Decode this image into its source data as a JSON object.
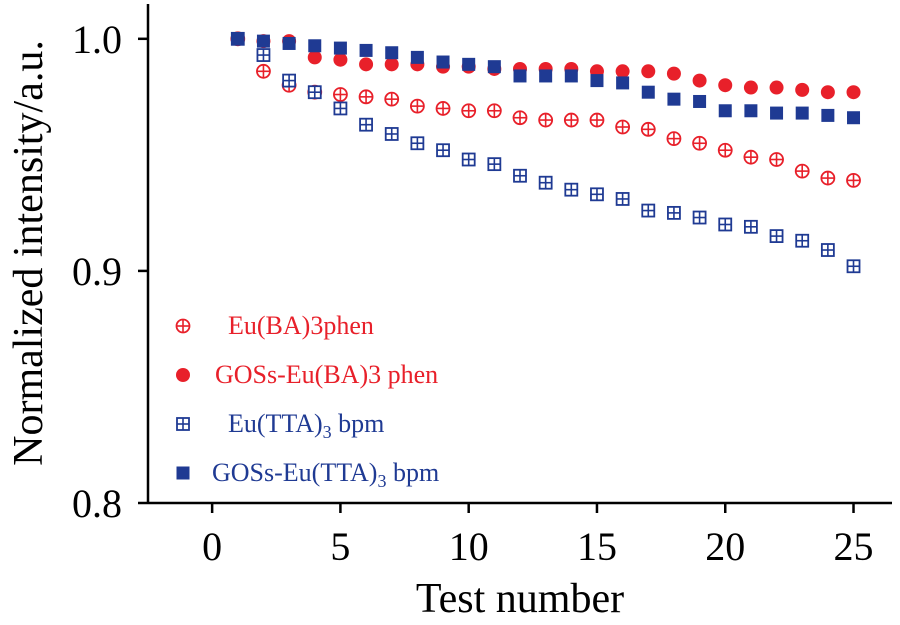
{
  "chart_data": {
    "type": "scatter",
    "xlabel": "Test number",
    "ylabel": "Normalized intensity/a.u.",
    "xlim": [
      -2.5,
      26.5
    ],
    "ylim": [
      0.8,
      1.015
    ],
    "xticks": [
      0,
      5,
      10,
      15,
      20,
      25
    ],
    "xtick_labels": [
      "0",
      "5",
      "10",
      "15",
      "20",
      "25"
    ],
    "yticks": [
      0.8,
      0.9,
      1.0
    ],
    "ytick_labels": [
      "0.8",
      "0.9",
      "1.0"
    ],
    "grid": false,
    "legend_position": "bottom-left",
    "x": [
      1,
      2,
      3,
      4,
      5,
      6,
      7,
      8,
      9,
      10,
      11,
      12,
      13,
      14,
      15,
      16,
      17,
      18,
      19,
      20,
      21,
      22,
      23,
      24,
      25
    ],
    "series": [
      {
        "name": "Eu(BA)3phen",
        "marker": "circle-cross-open",
        "color": "#e8202a",
        "values": [
          1.0,
          0.986,
          0.98,
          0.977,
          0.976,
          0.975,
          0.974,
          0.971,
          0.97,
          0.969,
          0.969,
          0.966,
          0.965,
          0.965,
          0.965,
          0.962,
          0.961,
          0.957,
          0.955,
          0.952,
          0.949,
          0.948,
          0.943,
          0.94,
          0.939
        ]
      },
      {
        "name": "GOSs-Eu(BA)3 phen",
        "marker": "circle-filled",
        "color": "#e8202a",
        "values": [
          1.0,
          0.999,
          0.999,
          0.992,
          0.991,
          0.989,
          0.989,
          0.989,
          0.988,
          0.988,
          0.987,
          0.987,
          0.987,
          0.987,
          0.986,
          0.986,
          0.986,
          0.985,
          0.982,
          0.98,
          0.979,
          0.979,
          0.978,
          0.977,
          0.977
        ]
      },
      {
        "name_main": "Eu(TTA)",
        "name_sub": "3",
        "name_tail": " bpm",
        "marker": "square-cross-open",
        "color": "#1f3a93",
        "values": [
          1.0,
          0.993,
          0.982,
          0.977,
          0.97,
          0.963,
          0.959,
          0.955,
          0.952,
          0.948,
          0.946,
          0.941,
          0.938,
          0.935,
          0.933,
          0.931,
          0.926,
          0.925,
          0.923,
          0.92,
          0.919,
          0.915,
          0.913,
          0.909,
          0.902
        ]
      },
      {
        "name_main": "GOSs-Eu(TTA)",
        "name_sub": "3",
        "name_tail": " bpm",
        "marker": "square-filled",
        "color": "#1f3a93",
        "values": [
          1.0,
          0.999,
          0.998,
          0.997,
          0.996,
          0.995,
          0.994,
          0.992,
          0.99,
          0.989,
          0.988,
          0.984,
          0.984,
          0.984,
          0.982,
          0.981,
          0.977,
          0.974,
          0.973,
          0.969,
          0.969,
          0.968,
          0.968,
          0.967,
          0.966
        ]
      }
    ]
  }
}
